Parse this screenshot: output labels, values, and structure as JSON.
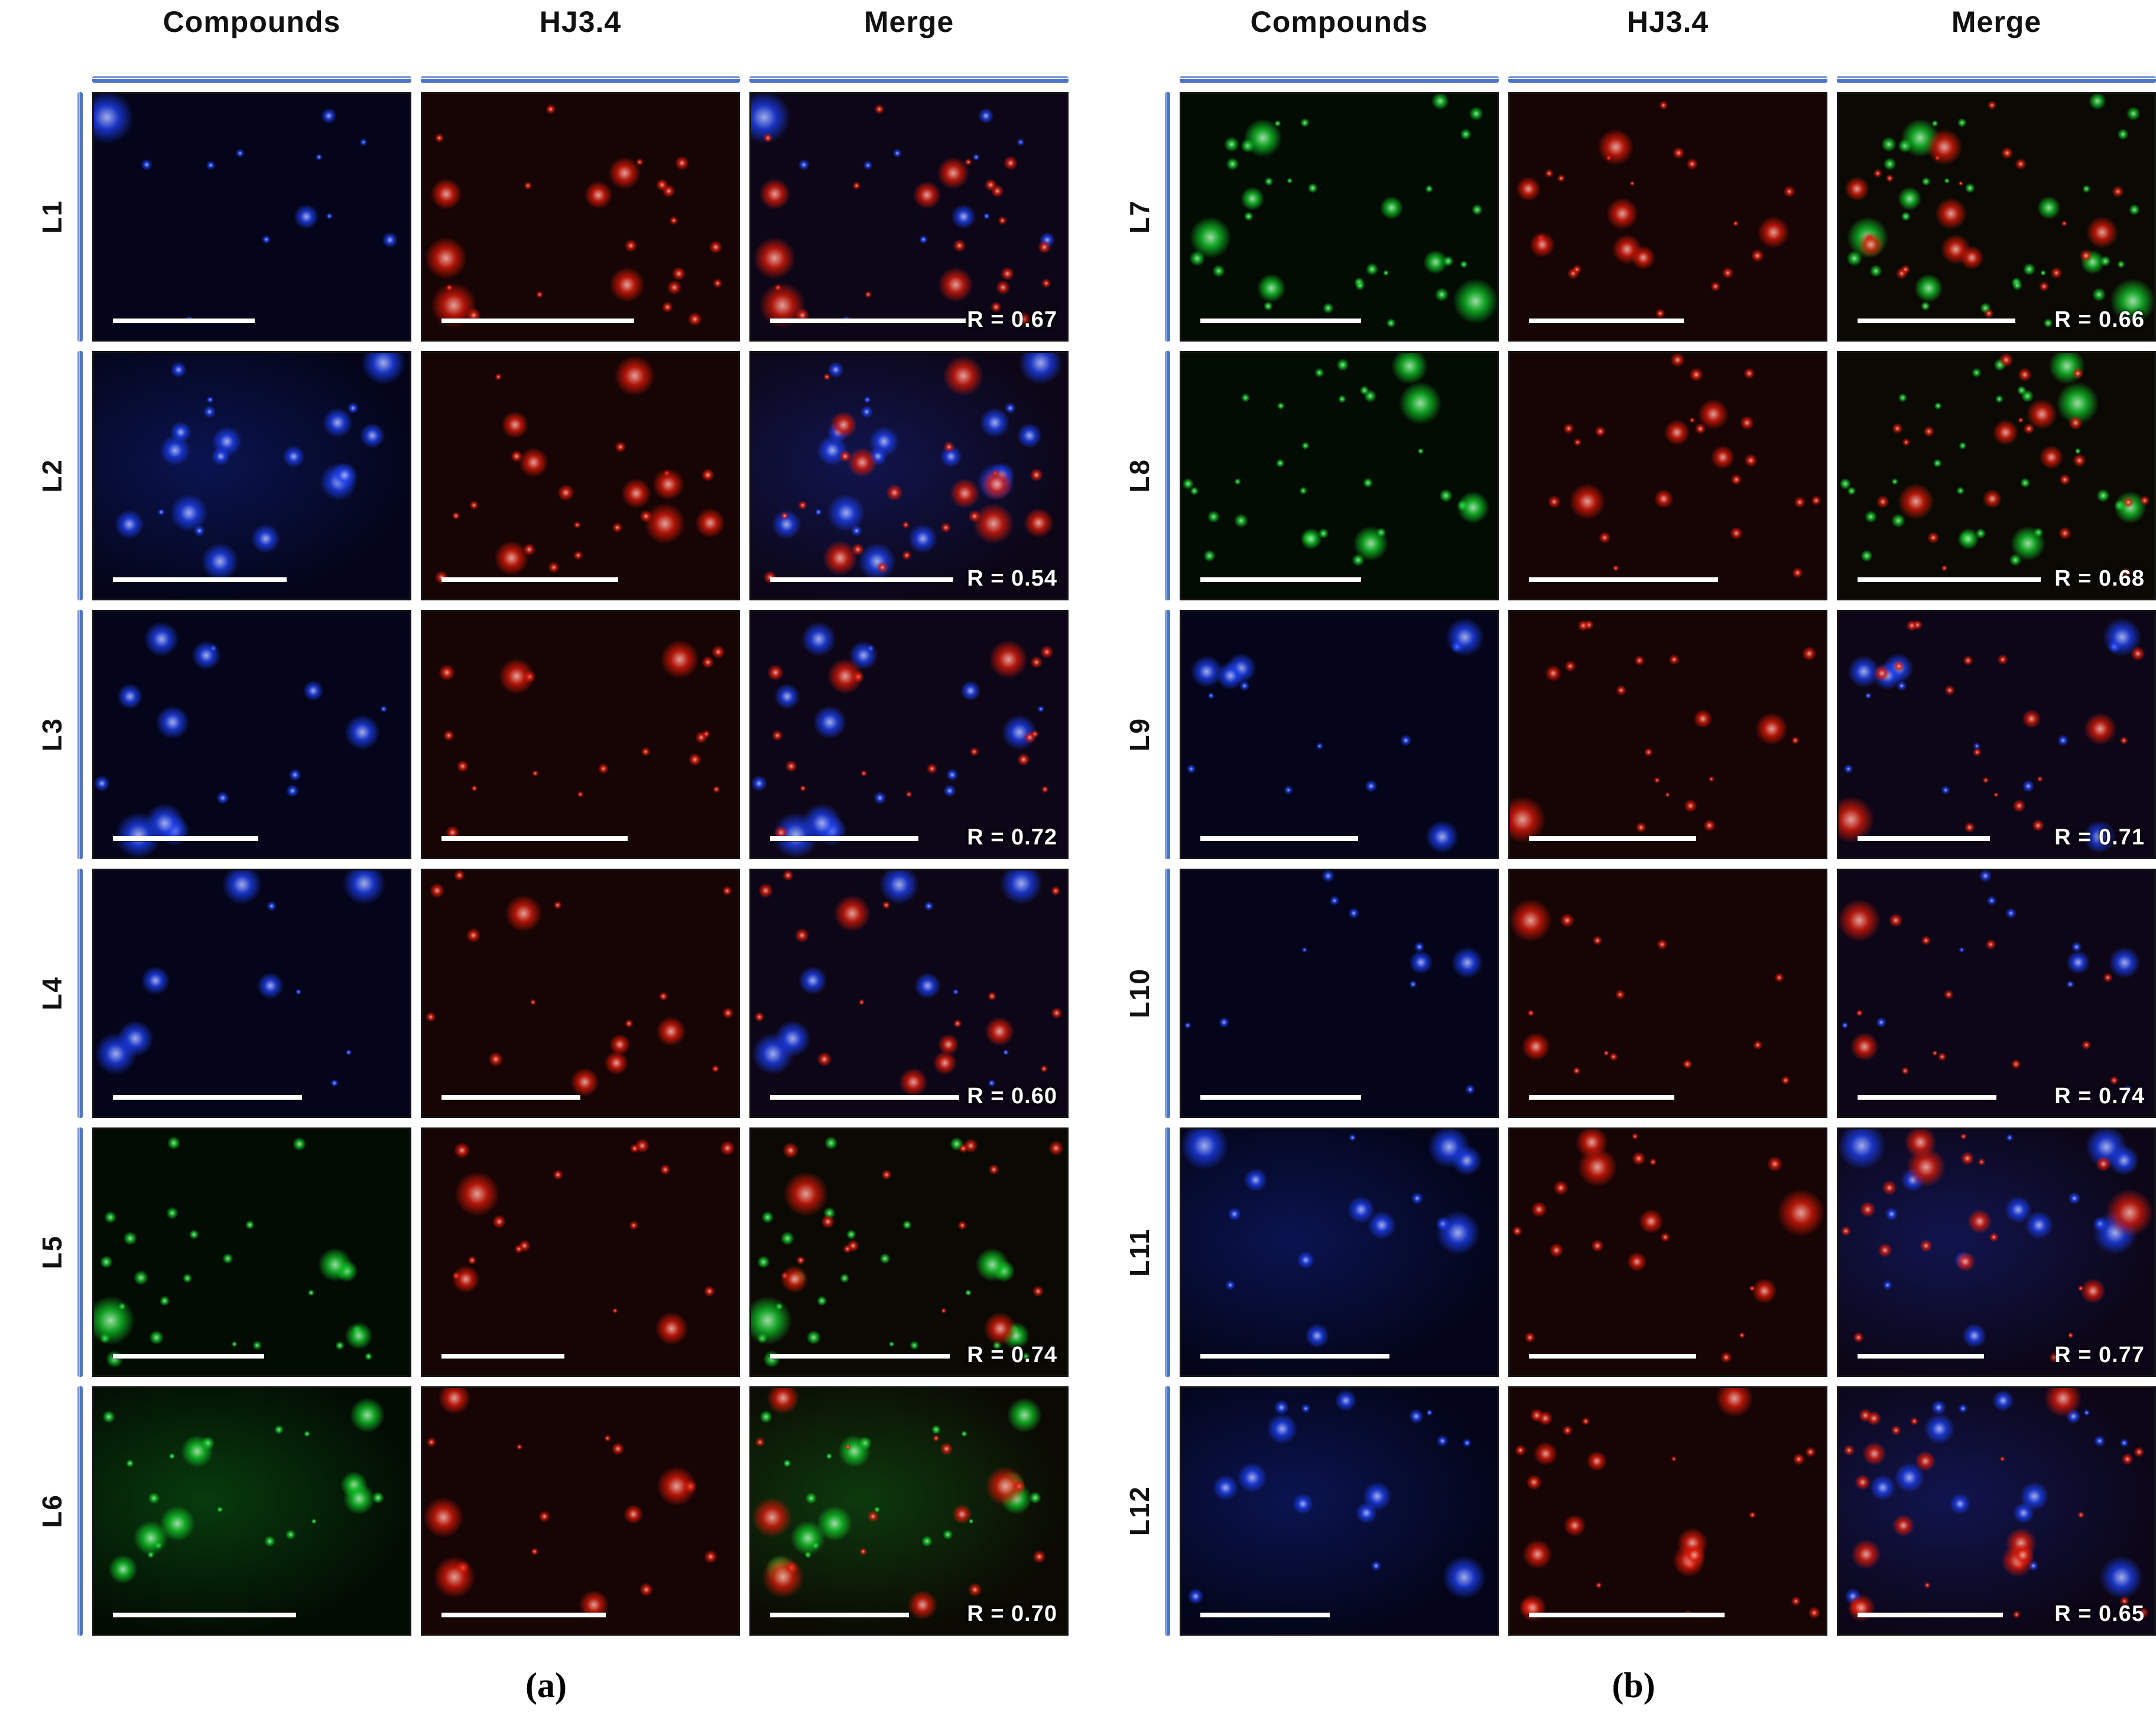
{
  "panels": [
    {
      "caption": "(a)",
      "column_headers": [
        "Compounds",
        "HJ3.4",
        "Merge"
      ],
      "rows": [
        {
          "label": "L1",
          "r_label": "R = 0.67",
          "compound_channel": "blue",
          "compound_dots": 10,
          "compound_blobs": 2,
          "hj_dots": 18,
          "hj_blobs": 6,
          "haze": false
        },
        {
          "label": "L2",
          "r_label": "R = 0.54",
          "compound_channel": "blue",
          "compound_dots": 6,
          "compound_blobs": 14,
          "hj_dots": 14,
          "hj_blobs": 9,
          "haze": true
        },
        {
          "label": "L3",
          "r_label": "R = 0.72",
          "compound_channel": "blue",
          "compound_dots": 6,
          "compound_blobs": 9,
          "hj_dots": 16,
          "hj_blobs": 2,
          "haze": false
        },
        {
          "label": "L4",
          "r_label": "R = 0.60",
          "compound_channel": "blue",
          "compound_dots": 4,
          "compound_blobs": 6,
          "hj_dots": 12,
          "hj_blobs": 5,
          "haze": false
        },
        {
          "label": "L5",
          "r_label": "R = 0.74",
          "compound_channel": "green",
          "compound_dots": 22,
          "compound_blobs": 4,
          "hj_dots": 14,
          "hj_blobs": 3,
          "haze": false
        },
        {
          "label": "L6",
          "r_label": "R = 0.70",
          "compound_channel": "green",
          "compound_dots": 14,
          "compound_blobs": 7,
          "hj_dots": 10,
          "hj_blobs": 6,
          "haze": true
        }
      ]
    },
    {
      "caption": "(b)",
      "column_headers": [
        "Compounds",
        "HJ3.4",
        "Merge"
      ],
      "rows": [
        {
          "label": "L7",
          "r_label": "R = 0.66",
          "compound_channel": "green",
          "compound_dots": 26,
          "compound_blobs": 7,
          "hj_dots": 16,
          "hj_blobs": 7,
          "haze": false
        },
        {
          "label": "L8",
          "r_label": "R = 0.68",
          "compound_channel": "green",
          "compound_dots": 24,
          "compound_blobs": 5,
          "hj_dots": 18,
          "hj_blobs": 5,
          "haze": false
        },
        {
          "label": "L9",
          "r_label": "R = 0.71",
          "compound_channel": "blue",
          "compound_dots": 8,
          "compound_blobs": 5,
          "hj_dots": 16,
          "hj_blobs": 3,
          "haze": false
        },
        {
          "label": "L10",
          "r_label": "R = 0.74",
          "compound_channel": "blue",
          "compound_dots": 9,
          "compound_blobs": 2,
          "hj_dots": 12,
          "hj_blobs": 2,
          "haze": false
        },
        {
          "label": "L11",
          "r_label": "R = 0.77",
          "compound_channel": "blue",
          "compound_dots": 5,
          "compound_blobs": 9,
          "hj_dots": 14,
          "hj_blobs": 6,
          "haze": true
        },
        {
          "label": "L12",
          "r_label": "R = 0.65",
          "compound_channel": "blue",
          "compound_dots": 8,
          "compound_blobs": 8,
          "hj_dots": 16,
          "hj_blobs": 9,
          "haze": true
        }
      ]
    }
  ],
  "colors": {
    "accent_blue": "#4d74c2",
    "compound_blue": "#1c3eeb",
    "compound_green": "#12c328",
    "antibody_red": "#d71908",
    "r_text": "#ffffff"
  }
}
